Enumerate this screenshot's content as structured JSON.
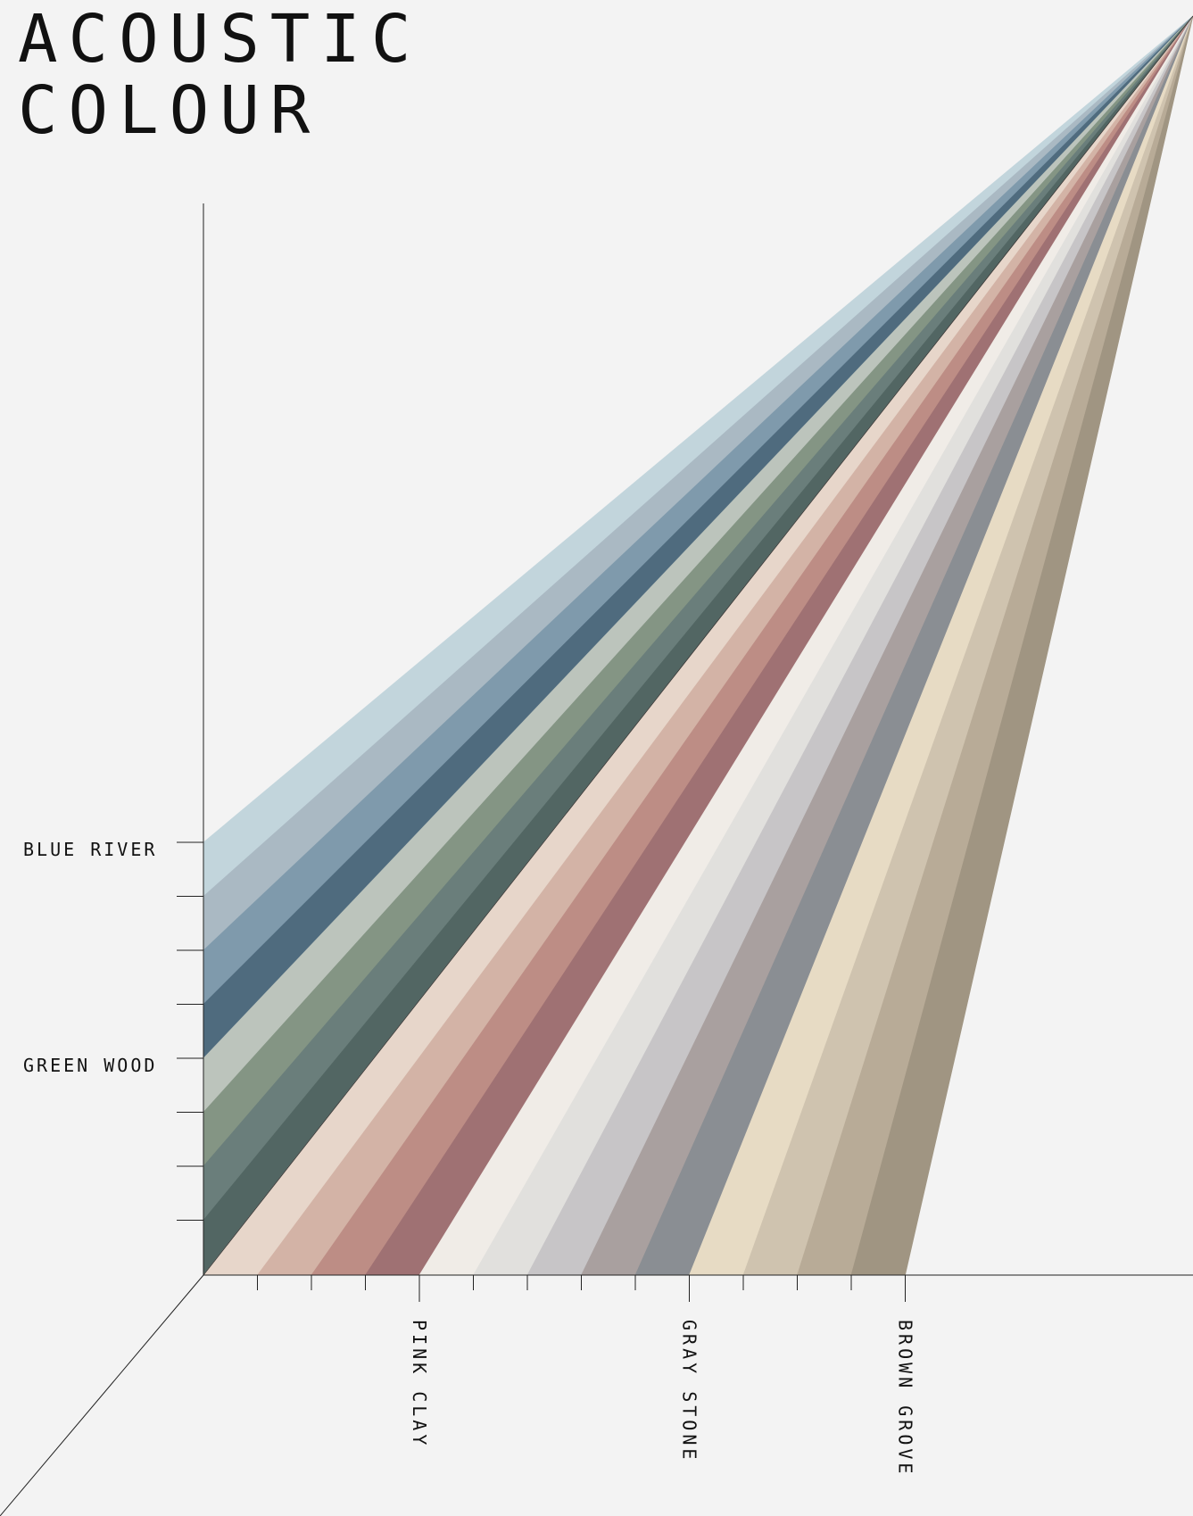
{
  "title": {
    "line1": "ACOUSTIC",
    "line2": "COLOUR"
  },
  "chart_data": {
    "type": "fan",
    "left_groups": [
      {
        "name": "BLUE RIVER",
        "colors": [
          "#c2d5dc",
          "#aab9c3",
          "#7f9aac",
          "#4f6b7e"
        ]
      },
      {
        "name": "GREEN WOOD",
        "colors": [
          "#bcc4bc",
          "#849584",
          "#6a7e7b",
          "#526663"
        ]
      }
    ],
    "bottom_groups": [
      {
        "name": "PINK CLAY",
        "colors": [
          "#e7d6ca",
          "#d3b3a6",
          "#bd8d85",
          "#9f7173"
        ]
      },
      {
        "name": "GRAY STONE",
        "colors": [
          "#f0ece7",
          "#e1e0dd",
          "#c7c5c7",
          "#a9a09f",
          "#8a8e93"
        ]
      },
      {
        "name": "BROWN GROVE",
        "colors": [
          "#e7dbc4",
          "#cfc3af",
          "#b8ab97",
          "#a09582"
        ]
      }
    ]
  }
}
